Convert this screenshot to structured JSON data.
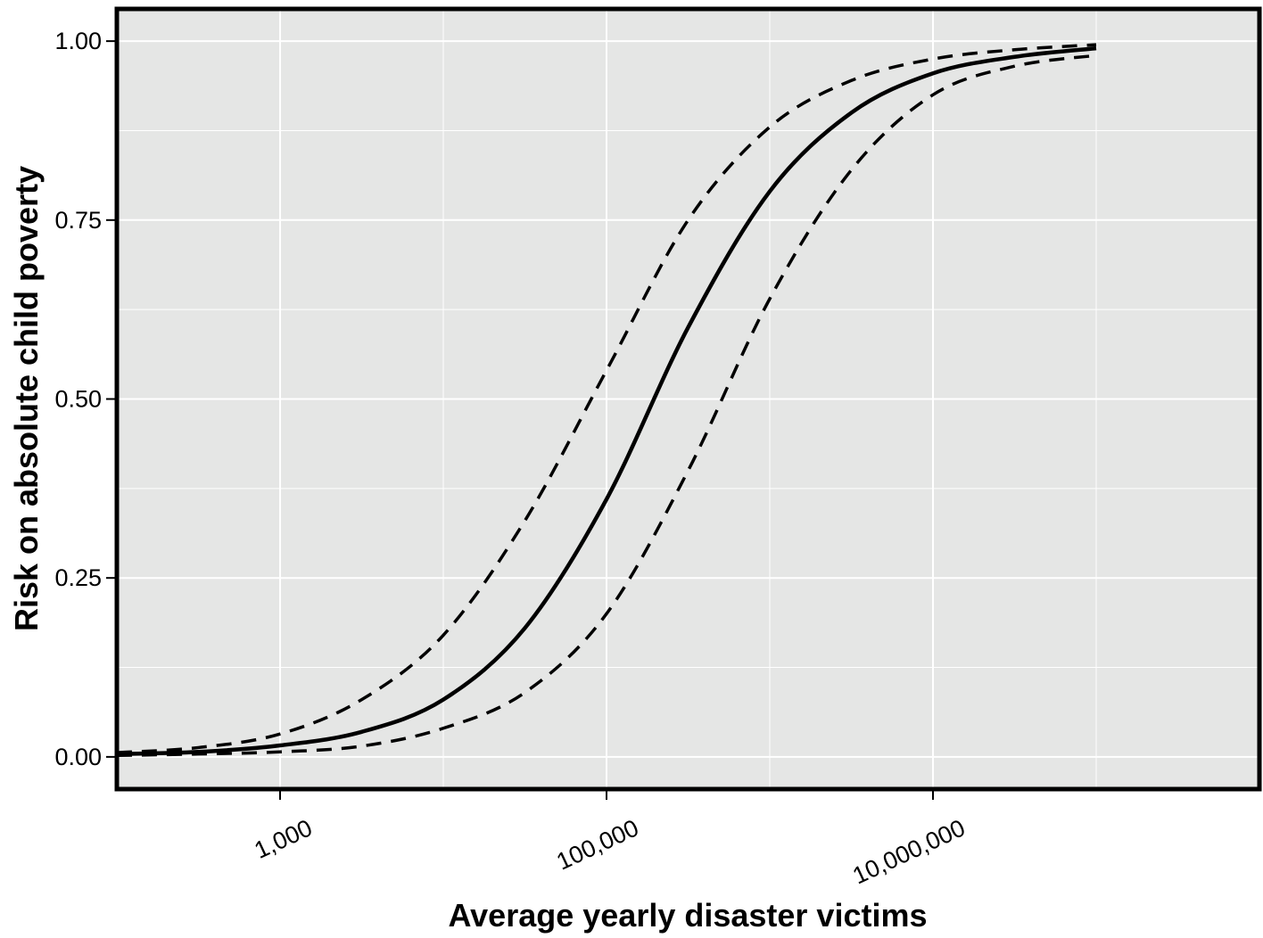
{
  "chart_data": {
    "type": "line",
    "title": "",
    "xlabel": "Average yearly disaster victims",
    "ylabel": "Risk on absolute child poverty",
    "x_scale": "log10",
    "xlim": [
      100,
      1000000000
    ],
    "ylim": [
      -0.045,
      1.045
    ],
    "x_ticks": [
      1000,
      100000,
      10000000
    ],
    "x_tick_labels": [
      "1,000",
      "100,000",
      "10,000,000"
    ],
    "y_ticks": [
      0,
      0.25,
      0.5,
      0.75,
      1
    ],
    "y_tick_labels": [
      "0.00",
      "0.25",
      "0.50",
      "0.75",
      "1.00"
    ],
    "grid": true,
    "colors": {
      "panel_background": "#e5e6e5",
      "grid": "#ffffff",
      "line": "#000000",
      "border": "#000000"
    },
    "x": [
      100,
      316,
      1000,
      3162,
      10000,
      31623,
      100000,
      316228,
      1000000,
      3162278,
      10000000,
      31622777,
      100000000
    ],
    "series": [
      {
        "style": "solid",
        "values": [
          0.004,
          0.007,
          0.016,
          0.035,
          0.08,
          0.18,
          0.36,
          0.6,
          0.79,
          0.9,
          0.955,
          0.978,
          0.99
        ]
      },
      {
        "style": "dashed",
        "values": [
          0.006,
          0.013,
          0.032,
          0.08,
          0.17,
          0.33,
          0.54,
          0.75,
          0.88,
          0.945,
          0.975,
          0.988,
          0.995
        ]
      },
      {
        "style": "dashed",
        "values": [
          0.002,
          0.004,
          0.007,
          0.015,
          0.04,
          0.09,
          0.2,
          0.4,
          0.64,
          0.82,
          0.925,
          0.965,
          0.98
        ]
      }
    ]
  }
}
